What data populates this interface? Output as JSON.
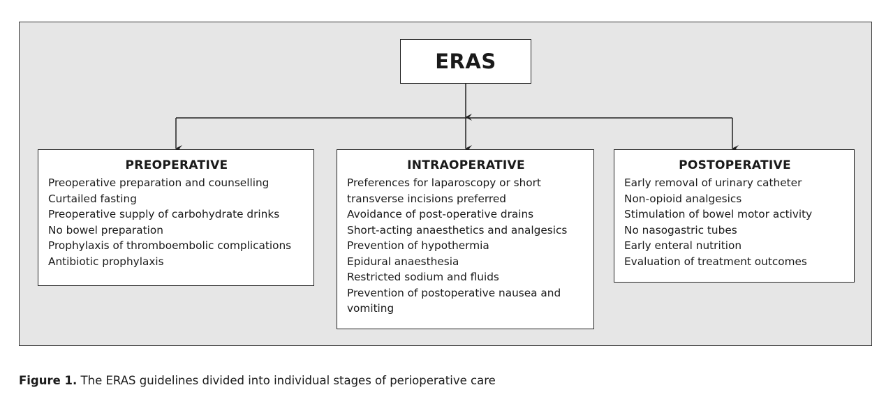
{
  "root": {
    "label": "ERAS"
  },
  "stages": [
    {
      "key": "pre",
      "title": "PREOPERATIVE",
      "items": [
        "Preoperative preparation and counselling",
        "Curtailed fasting",
        "Preoperative supply of carbohydrate drinks",
        "No bowel preparation",
        "Prophylaxis of thromboembolic complications",
        "Antibiotic prophylaxis"
      ]
    },
    {
      "key": "intra",
      "title": "INTRAOPERATIVE",
      "items": [
        "Preferences for laparoscopy or short",
        "transverse incisions preferred",
        "Avoidance of post-operative drains",
        "Short-acting anaesthetics and analgesics",
        "Prevention of hypothermia",
        "Epidural anaesthesia",
        "Restricted sodium and fluids",
        "Prevention of postoperative nausea and",
        "vomiting"
      ]
    },
    {
      "key": "post",
      "title": "POSTOPERATIVE",
      "items": [
        "Early removal of urinary catheter",
        "Non-opioid analgesics",
        "Stimulation of bowel motor activity",
        "No nasogastric tubes",
        "Early enteral nutrition",
        "Evaluation of treatment outcomes"
      ]
    }
  ],
  "caption": {
    "lead": "Figure 1.",
    "text": " The ERAS guidelines divided into individual stages of perioperative care"
  }
}
